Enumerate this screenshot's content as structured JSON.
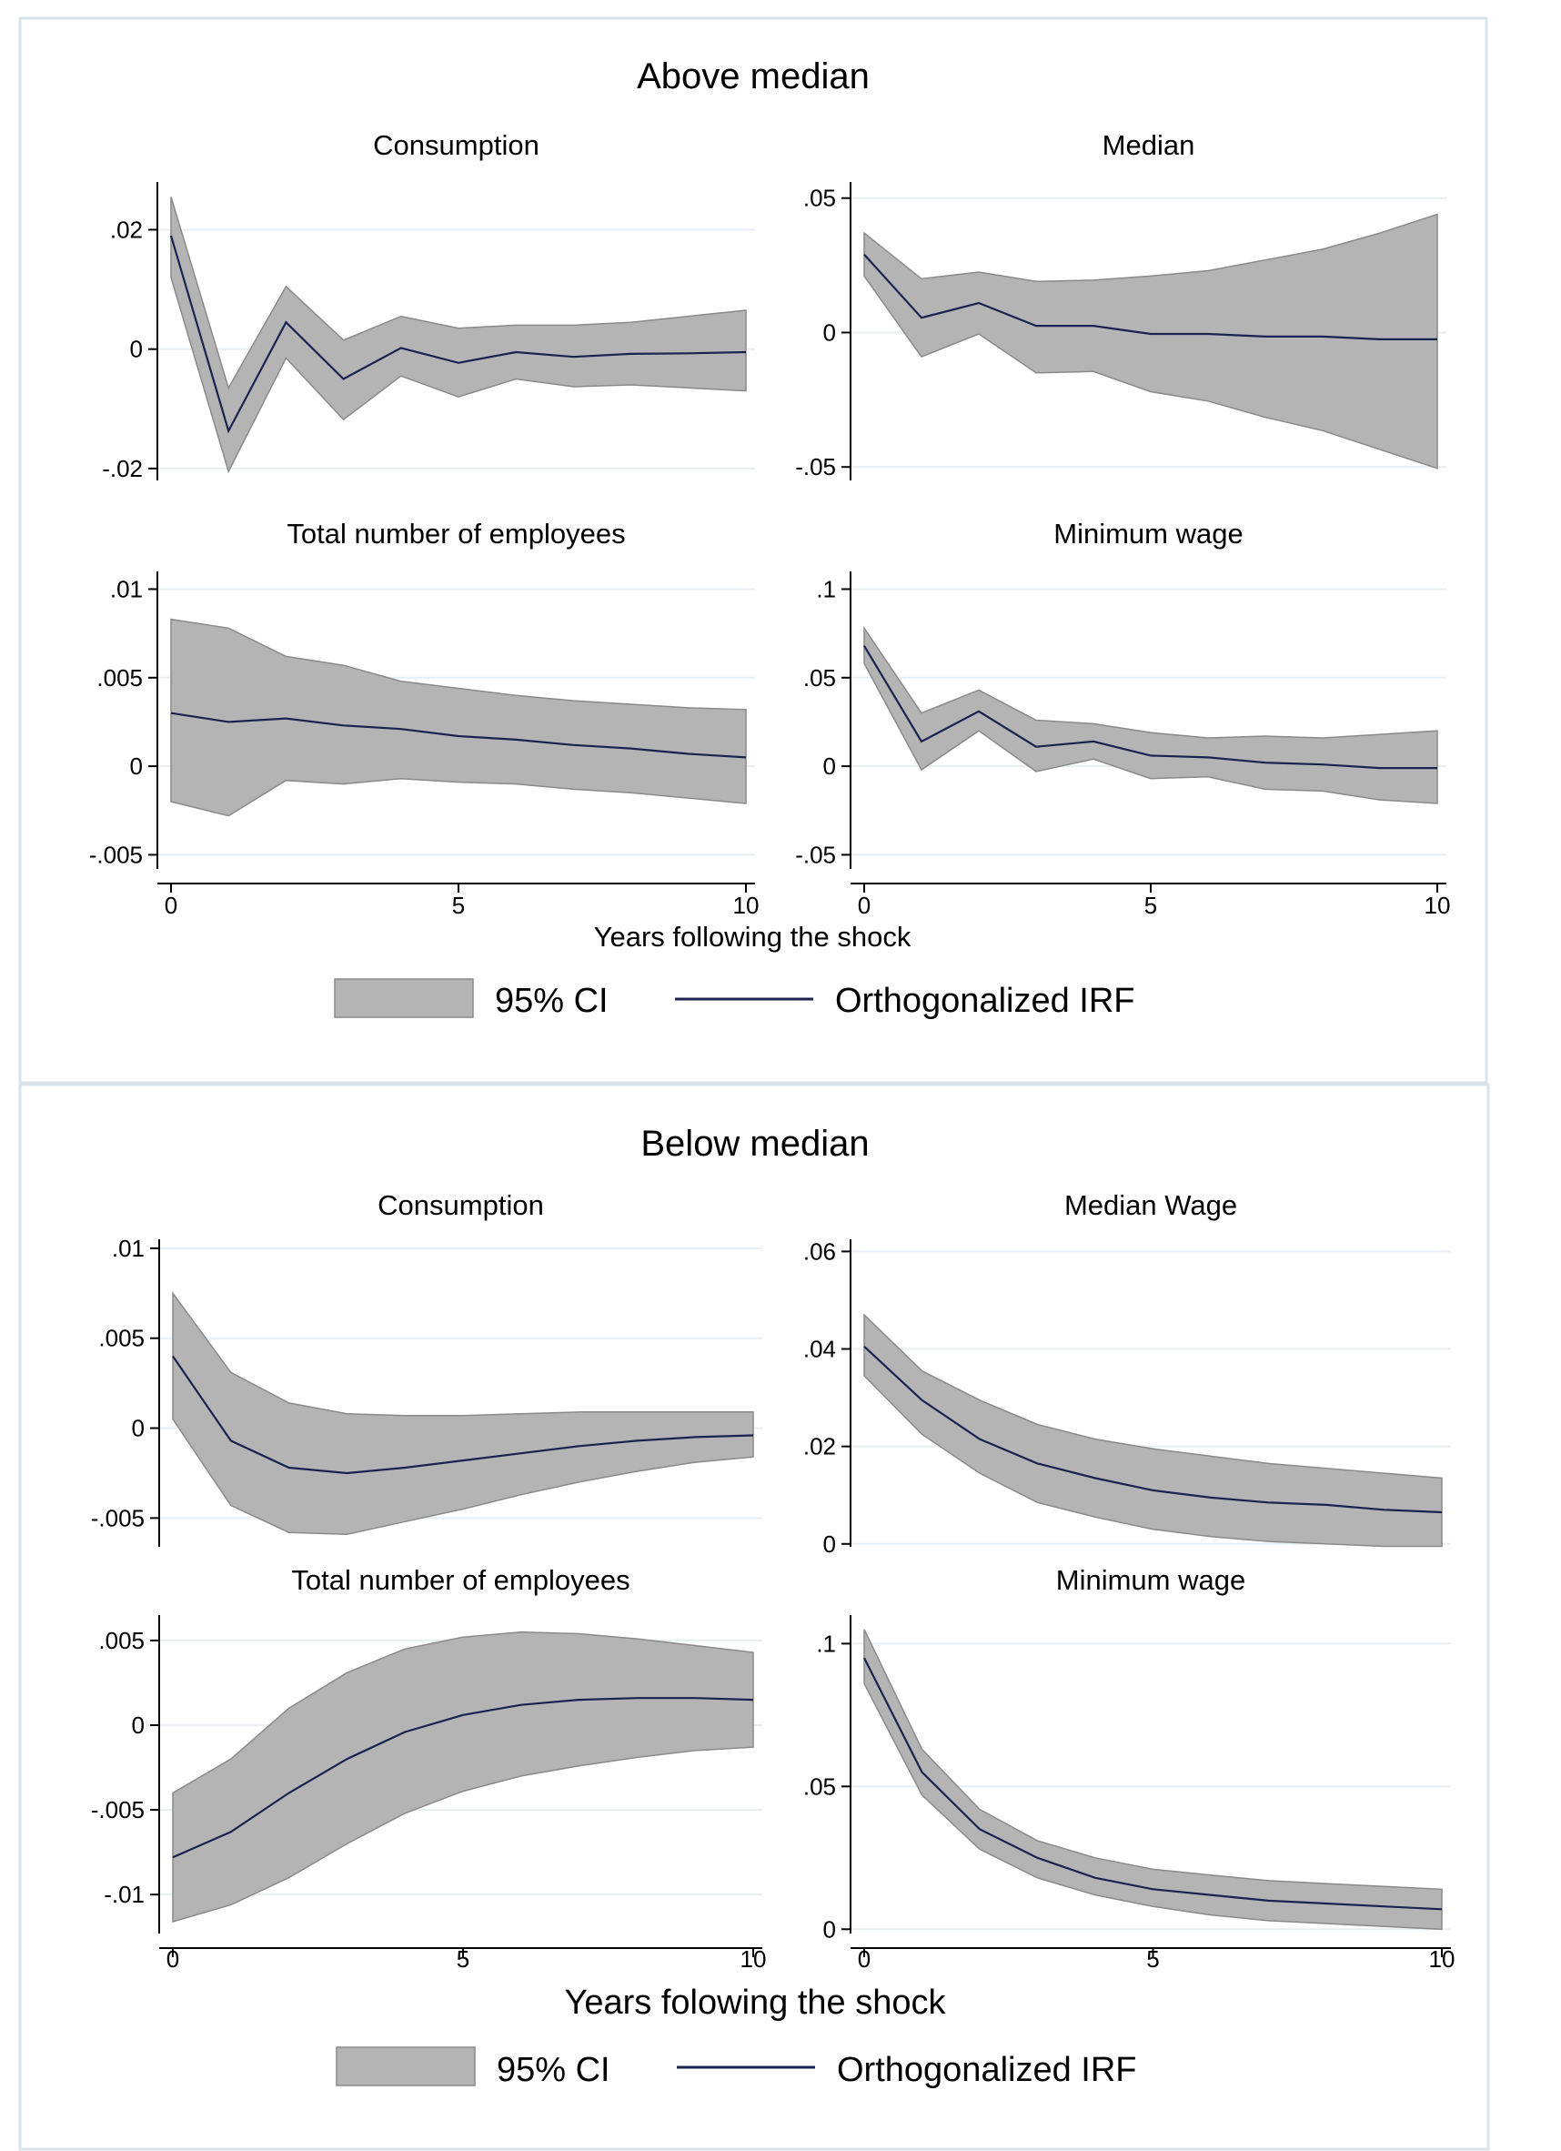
{
  "colors": {
    "band": "#b4b4b4",
    "band_edge": "#8a8a8a",
    "line": "#1a2350",
    "grid": "#e8eef1",
    "frame": "#d8e4ea"
  },
  "legend": {
    "ci_label": "95% CI",
    "irf_label": "Orthogonalized IRF"
  },
  "chart_data": [
    {
      "group_title": "Above median",
      "xlabel": "Years following the shock",
      "subplots": [
        {
          "type": "area",
          "title": "Consumption",
          "x": [
            0,
            1,
            2,
            3,
            4,
            5,
            6,
            7,
            8,
            9,
            10
          ],
          "ylim": [
            -0.022,
            0.028
          ],
          "yticks": [
            -0.02,
            0,
            0.02
          ],
          "ytick_labels": [
            "-.02",
            "0",
            ".02"
          ],
          "series": [
            {
              "name": "Orthogonalized IRF",
              "values": [
                0.019,
                -0.0137,
                0.0045,
                -0.005,
                0.0002,
                -0.0023,
                -0.0005,
                -0.0013,
                -0.0008,
                -0.0007,
                -0.0005
              ]
            },
            {
              "name": "95% CI upper",
              "values": [
                0.0255,
                -0.0065,
                0.0105,
                0.0015,
                0.0055,
                0.0035,
                0.004,
                0.004,
                0.0045,
                0.0055,
                0.0065
              ]
            },
            {
              "name": "95% CI lower",
              "values": [
                0.012,
                -0.0205,
                -0.0015,
                -0.0118,
                -0.0045,
                -0.008,
                -0.005,
                -0.0063,
                -0.006,
                -0.0065,
                -0.007
              ]
            }
          ]
        },
        {
          "type": "area",
          "title": "Median",
          "x": [
            0,
            1,
            2,
            3,
            4,
            5,
            6,
            7,
            8,
            9,
            10
          ],
          "ylim": [
            -0.055,
            0.056
          ],
          "yticks": [
            -0.05,
            0,
            0.05
          ],
          "ytick_labels": [
            "-.05",
            "0",
            ".05"
          ],
          "series": [
            {
              "name": "Orthogonalized IRF",
              "values": [
                0.029,
                0.0055,
                0.011,
                0.0025,
                0.0025,
                -0.0005,
                -0.0005,
                -0.0015,
                -0.0015,
                -0.0025,
                -0.0025
              ]
            },
            {
              "name": "95% CI upper",
              "values": [
                0.037,
                0.02,
                0.0225,
                0.019,
                0.0195,
                0.021,
                0.023,
                0.027,
                0.031,
                0.037,
                0.044
              ]
            },
            {
              "name": "95% CI lower",
              "values": [
                0.021,
                -0.009,
                -0.0005,
                -0.015,
                -0.0145,
                -0.022,
                -0.0255,
                -0.0315,
                -0.0365,
                -0.0435,
                -0.0505
              ]
            }
          ]
        },
        {
          "type": "area",
          "title": "Total number of employees",
          "x": [
            0,
            1,
            2,
            3,
            4,
            5,
            6,
            7,
            8,
            9,
            10
          ],
          "ylim": [
            -0.0058,
            0.011
          ],
          "yticks": [
            -0.005,
            0,
            0.005,
            0.01
          ],
          "ytick_labels": [
            "-.005",
            "0",
            ".005",
            ".01"
          ],
          "series": [
            {
              "name": "Orthogonalized IRF",
              "values": [
                0.003,
                0.0025,
                0.0027,
                0.0023,
                0.0021,
                0.0017,
                0.0015,
                0.0012,
                0.001,
                0.0007,
                0.0005
              ]
            },
            {
              "name": "95% CI upper",
              "values": [
                0.0083,
                0.0078,
                0.0062,
                0.0057,
                0.0048,
                0.0044,
                0.004,
                0.0037,
                0.0035,
                0.0033,
                0.0032
              ]
            },
            {
              "name": "95% CI lower",
              "values": [
                -0.002,
                -0.0028,
                -0.0008,
                -0.001,
                -0.0007,
                -0.0009,
                -0.001,
                -0.0013,
                -0.0015,
                -0.0018,
                -0.0021
              ]
            }
          ]
        },
        {
          "type": "area",
          "title": "Minimum wage",
          "x": [
            0,
            1,
            2,
            3,
            4,
            5,
            6,
            7,
            8,
            9,
            10
          ],
          "ylim": [
            -0.058,
            0.11
          ],
          "yticks": [
            -0.05,
            0,
            0.05,
            0.1
          ],
          "ytick_labels": [
            "-.05",
            "0",
            ".05",
            ".1"
          ],
          "series": [
            {
              "name": "Orthogonalized IRF",
              "values": [
                0.068,
                0.014,
                0.031,
                0.011,
                0.014,
                0.006,
                0.005,
                0.002,
                0.001,
                -0.001,
                -0.001
              ]
            },
            {
              "name": "95% CI upper",
              "values": [
                0.078,
                0.03,
                0.043,
                0.026,
                0.024,
                0.019,
                0.016,
                0.017,
                0.016,
                0.018,
                0.02
              ]
            },
            {
              "name": "95% CI lower",
              "values": [
                0.058,
                -0.002,
                0.02,
                -0.003,
                0.004,
                -0.007,
                -0.006,
                -0.013,
                -0.014,
                -0.019,
                -0.021
              ]
            }
          ]
        }
      ]
    },
    {
      "group_title": "Below median",
      "xlabel": "Years folowing the shock",
      "subplots": [
        {
          "type": "area",
          "title": "Consumption",
          "x": [
            0,
            1,
            2,
            3,
            4,
            5,
            6,
            7,
            8,
            9,
            10
          ],
          "ylim": [
            -0.0066,
            0.0105
          ],
          "yticks": [
            -0.005,
            0,
            0.005,
            0.01
          ],
          "ytick_labels": [
            "-.005",
            "0",
            ".005",
            ".01"
          ],
          "series": [
            {
              "name": "Orthogonalized IRF",
              "values": [
                0.004,
                -0.0007,
                -0.0022,
                -0.0025,
                -0.0022,
                -0.0018,
                -0.0014,
                -0.001,
                -0.0007,
                -0.0005,
                -0.0004
              ]
            },
            {
              "name": "95% CI upper",
              "values": [
                0.0075,
                0.0031,
                0.0014,
                0.0008,
                0.0007,
                0.0007,
                0.0008,
                0.0009,
                0.0009,
                0.0009,
                0.0009
              ]
            },
            {
              "name": "95% CI lower",
              "values": [
                0.0005,
                -0.0043,
                -0.0058,
                -0.0059,
                -0.0052,
                -0.0045,
                -0.0037,
                -0.003,
                -0.0024,
                -0.0019,
                -0.0016
              ]
            }
          ]
        },
        {
          "type": "area",
          "title": "Median Wage",
          "x": [
            0,
            1,
            2,
            3,
            4,
            5,
            6,
            7,
            8,
            9,
            10
          ],
          "ylim": [
            -0.0006,
            0.0625
          ],
          "yticks": [
            0,
            0.02,
            0.04,
            0.06
          ],
          "ytick_labels": [
            "0",
            ".02",
            ".04",
            ".06"
          ],
          "series": [
            {
              "name": "Orthogonalized IRF",
              "values": [
                0.0405,
                0.0295,
                0.0215,
                0.0165,
                0.0135,
                0.011,
                0.0095,
                0.0085,
                0.008,
                0.007,
                0.0065
              ]
            },
            {
              "name": "95% CI upper",
              "values": [
                0.047,
                0.0355,
                0.0295,
                0.0245,
                0.0215,
                0.0195,
                0.018,
                0.0165,
                0.0155,
                0.0145,
                0.0135
              ]
            },
            {
              "name": "95% CI lower",
              "values": [
                0.0345,
                0.0225,
                0.0145,
                0.0085,
                0.0055,
                0.003,
                0.0015,
                0.0005,
                0.0,
                -0.0005,
                -0.0005
              ]
            }
          ]
        },
        {
          "type": "area",
          "title": "Total number of employees",
          "x": [
            0,
            1,
            2,
            3,
            4,
            5,
            6,
            7,
            8,
            9,
            10
          ],
          "ylim": [
            -0.0123,
            0.0065
          ],
          "yticks": [
            -0.01,
            -0.005,
            0,
            0.005
          ],
          "ytick_labels": [
            "-.01",
            "-.005",
            "0",
            ".005"
          ],
          "series": [
            {
              "name": "Orthogonalized IRF",
              "values": [
                -0.0078,
                -0.0063,
                -0.004,
                -0.002,
                -0.0004,
                0.0006,
                0.0012,
                0.0015,
                0.0016,
                0.0016,
                0.0015
              ]
            },
            {
              "name": "95% CI upper",
              "values": [
                -0.004,
                -0.002,
                0.001,
                0.0031,
                0.0045,
                0.0052,
                0.0055,
                0.0054,
                0.0051,
                0.0047,
                0.0043
              ]
            },
            {
              "name": "95% CI lower",
              "values": [
                -0.0116,
                -0.0106,
                -0.009,
                -0.007,
                -0.0052,
                -0.0039,
                -0.003,
                -0.0024,
                -0.0019,
                -0.0015,
                -0.0013
              ]
            }
          ]
        },
        {
          "type": "area",
          "title": "Minimum wage",
          "x": [
            0,
            1,
            2,
            3,
            4,
            5,
            6,
            7,
            8,
            9,
            10
          ],
          "ylim": [
            -0.0015,
            0.11
          ],
          "yticks": [
            0,
            0.05,
            0.1
          ],
          "ytick_labels": [
            "0",
            ".05",
            ".1"
          ],
          "series": [
            {
              "name": "Orthogonalized IRF",
              "values": [
                0.095,
                0.055,
                0.035,
                0.025,
                0.018,
                0.014,
                0.012,
                0.01,
                0.009,
                0.008,
                0.007
              ]
            },
            {
              "name": "95% CI upper",
              "values": [
                0.105,
                0.063,
                0.042,
                0.031,
                0.025,
                0.021,
                0.019,
                0.017,
                0.016,
                0.015,
                0.014
              ]
            },
            {
              "name": "95% CI lower",
              "values": [
                0.086,
                0.047,
                0.028,
                0.018,
                0.012,
                0.008,
                0.005,
                0.003,
                0.002,
                0.001,
                0.0
              ]
            }
          ]
        }
      ]
    }
  ]
}
